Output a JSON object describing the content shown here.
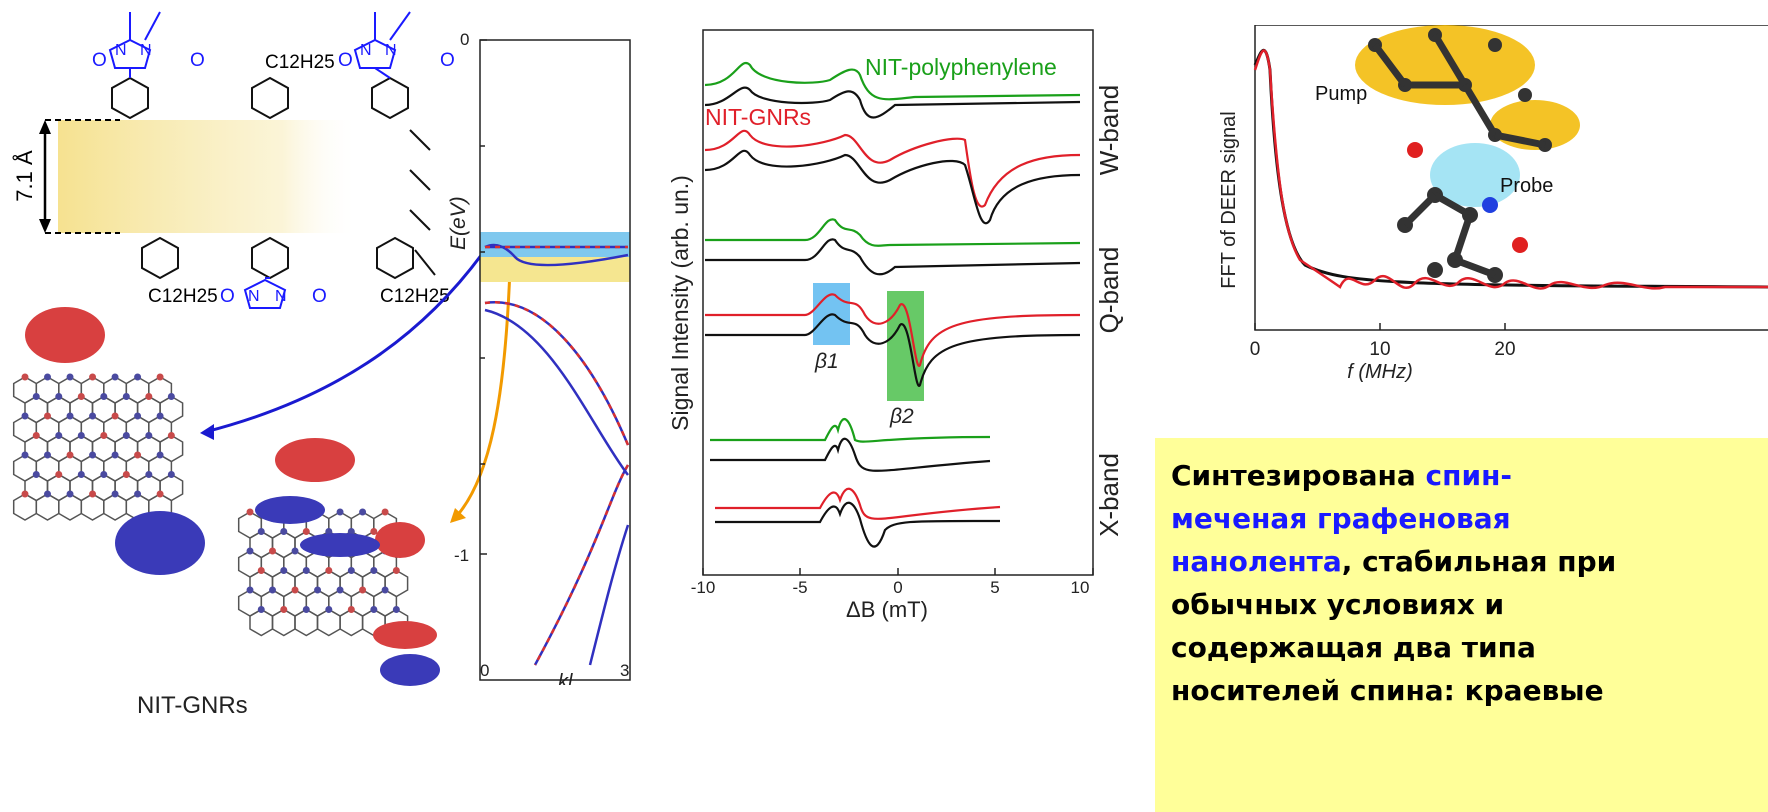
{
  "molecule": {
    "width_label": "7.1 Å",
    "sub_top": "C12H25",
    "sub_bl": "C12H25",
    "sub_br": "C12H25",
    "o_label": "O",
    "n_label": "N",
    "caption": "NIT-GNRs"
  },
  "band": {
    "ylabel": "E(eV)",
    "xlabel": "kl",
    "yticks": [
      "0",
      "-1"
    ],
    "xticks": [
      "0",
      "3"
    ]
  },
  "epr": {
    "ylabel": "Signal Intensity (arb. un.)",
    "xlabel": "ΔB (mT)",
    "xticks": [
      "-10",
      "-5",
      "0",
      "5",
      "10"
    ],
    "label_green": "NIT-polyphenylene",
    "label_red": "NIT-GNRs",
    "bands": [
      "W-band",
      "Q-band",
      "X-band"
    ],
    "beta1": "β1",
    "beta2": "β2"
  },
  "deer": {
    "ylabel": "FFT of DEER signal",
    "xlabel": "f (MHz)",
    "xticks": [
      "0",
      "10",
      "20"
    ],
    "pump": "Pump",
    "probe": "Probe"
  },
  "summary": {
    "part1": "Синтезирована ",
    "highlight1": "спин-",
    "highlight2": "меченая графеновая",
    "highlight3": "нанолента",
    "part2": ", стабильная при",
    "line4": "обычных условиях и",
    "line5": "содержащая два типа",
    "line6": "носителей спина: краевые"
  },
  "colors": {
    "green": "#1aa01a",
    "red": "#e0202a",
    "blue": "#1a1aff",
    "orange": "#f29a00",
    "highlight_bg": "#ffff99"
  }
}
